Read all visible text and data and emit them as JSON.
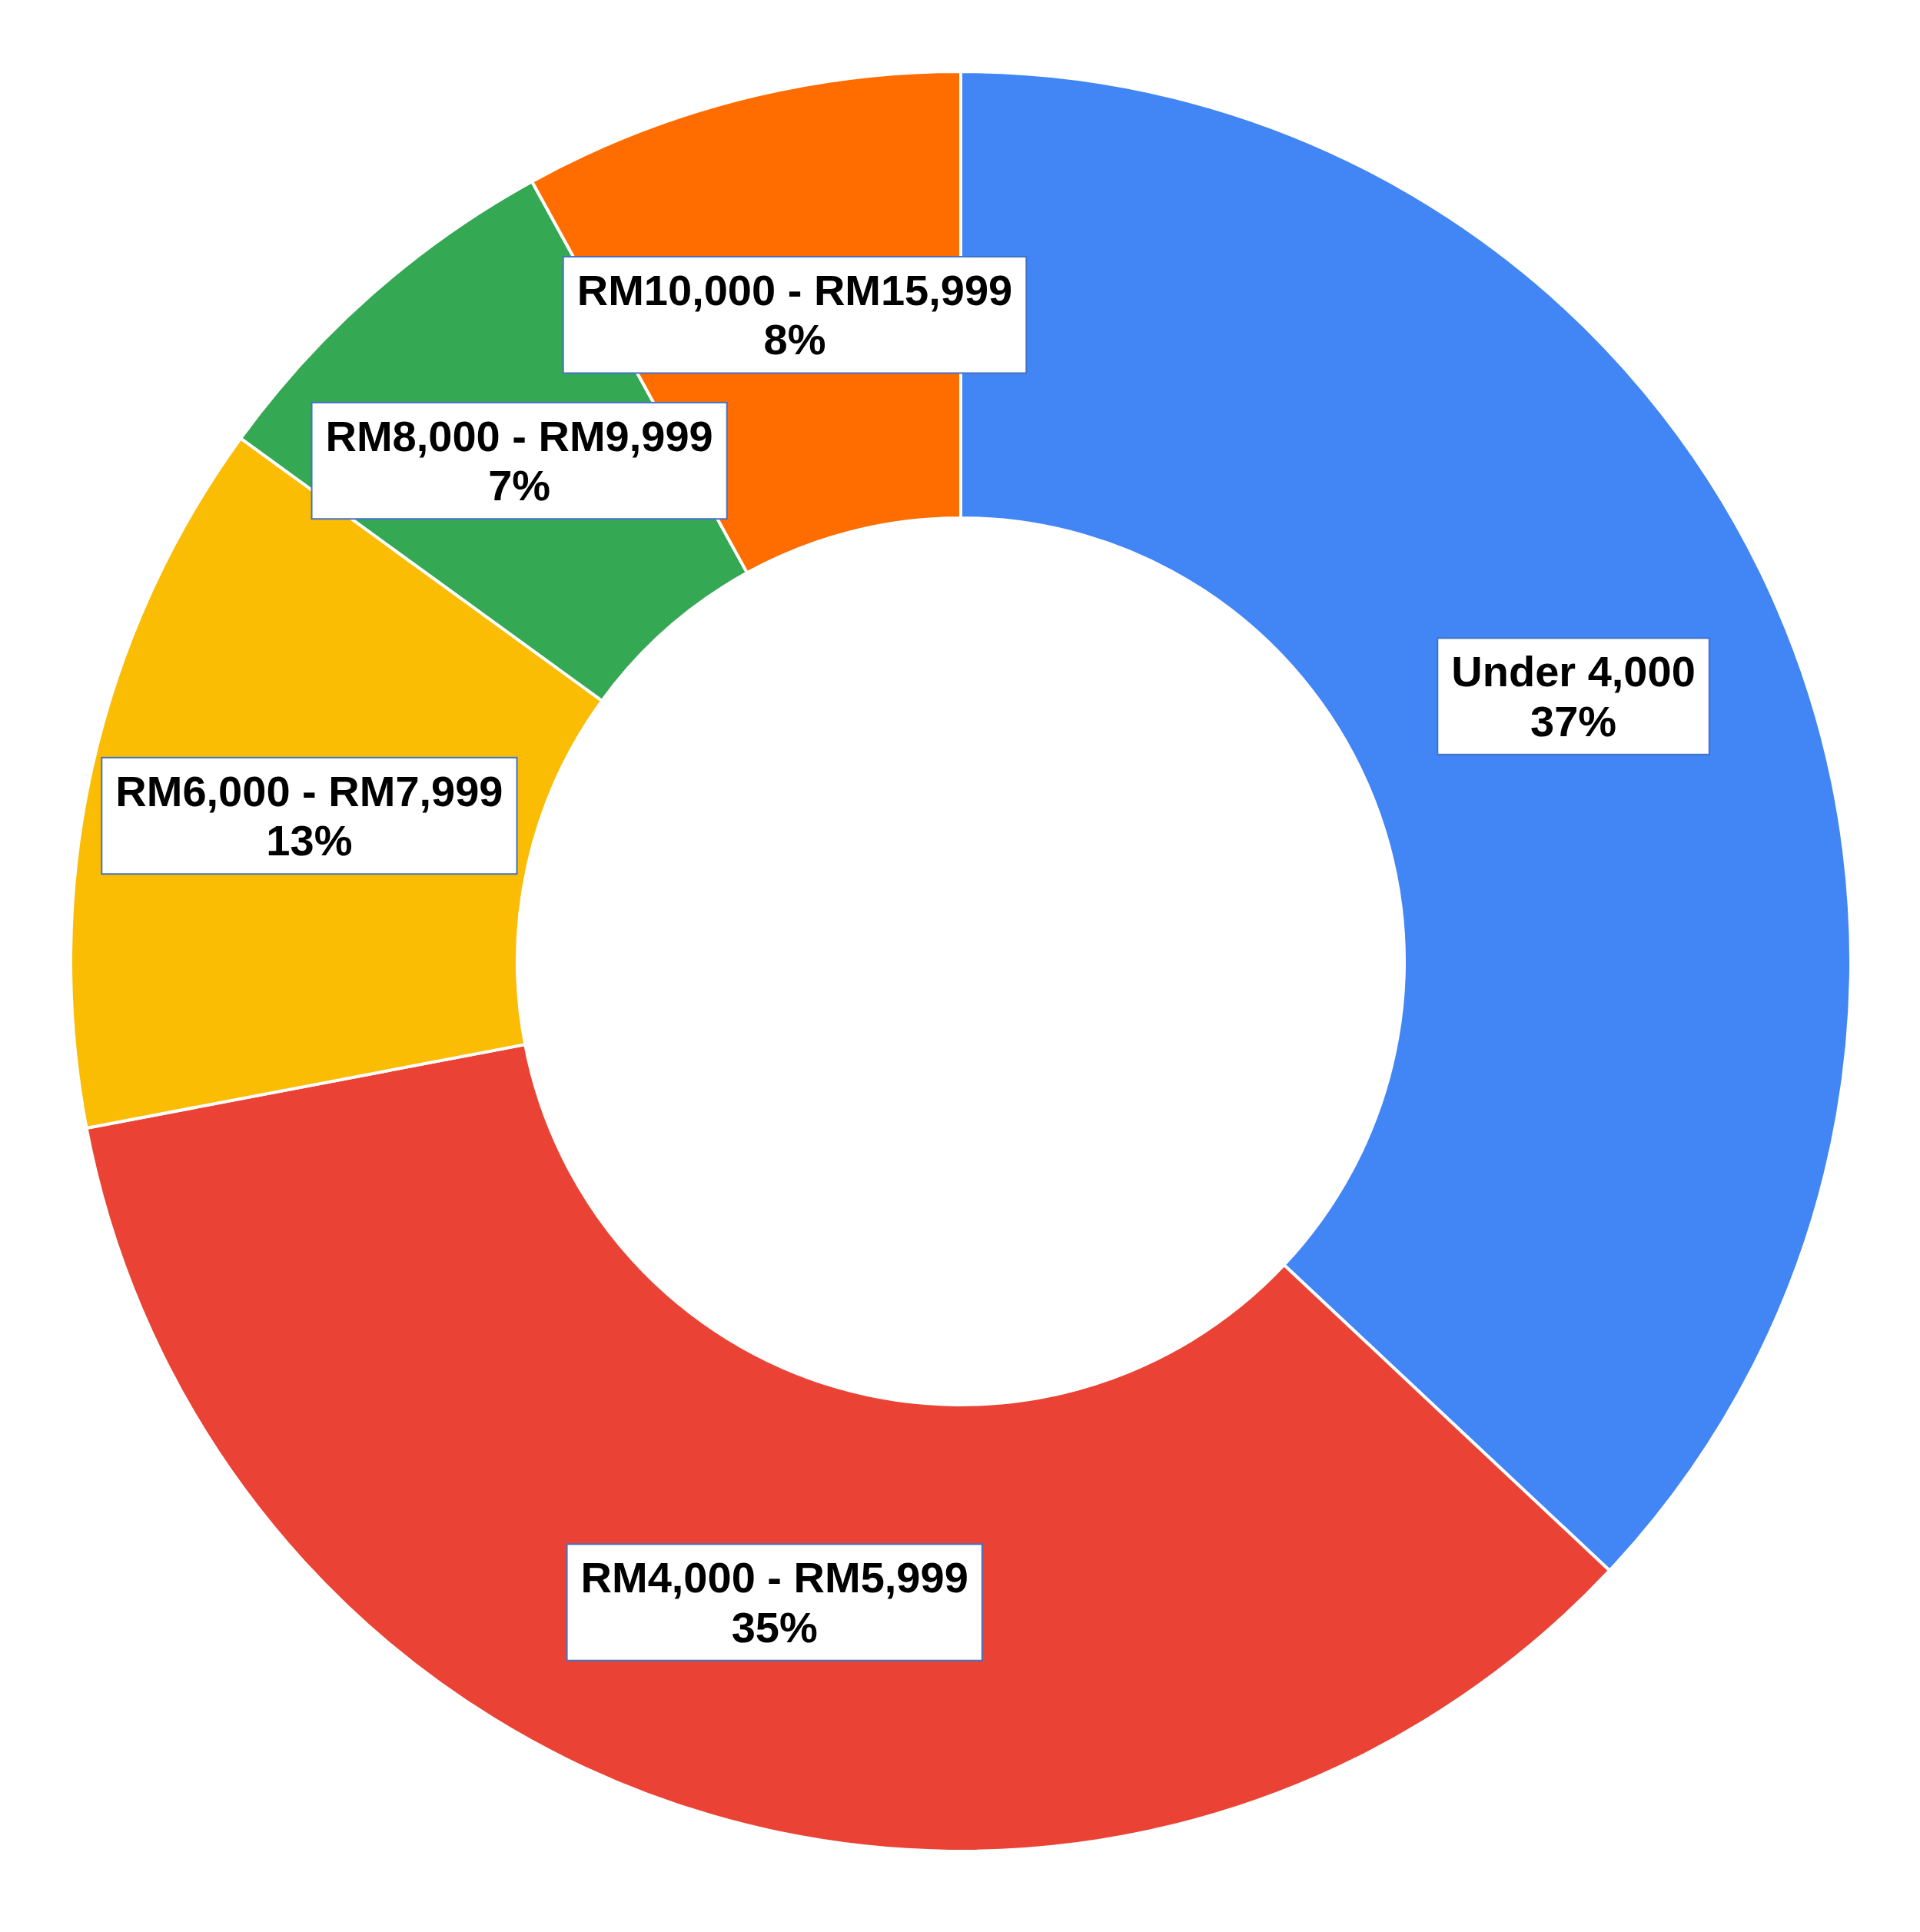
{
  "chart_data": {
    "type": "donut",
    "categories": [
      "Under 4,000",
      "RM4,000 - RM5,999",
      "RM6,000 - RM7,999",
      "RM8,000 - RM9,999",
      "RM10,000 - RM15,999"
    ],
    "values": [
      37,
      35,
      13,
      7,
      8
    ],
    "colors": [
      "#4285f4",
      "#ea4335",
      "#fbbc04",
      "#34a853",
      "#ff6d01"
    ],
    "value_labels": [
      "37%",
      "35%",
      "13%",
      "7%",
      "8%"
    ]
  }
}
